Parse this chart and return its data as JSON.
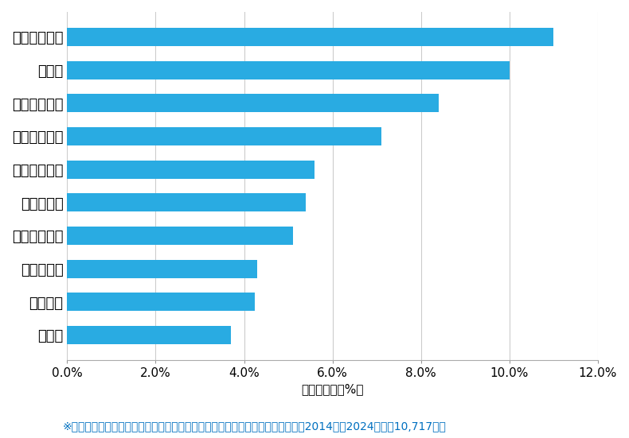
{
  "categories": [
    "城陽市",
    "長岡京市",
    "京都市南区",
    "京都市山科区",
    "京都市北区",
    "京都市左京区",
    "京都市西京区",
    "京都市右京区",
    "宇治市",
    "京都市伏見区"
  ],
  "values": [
    3.7,
    4.25,
    4.3,
    5.1,
    5.4,
    5.6,
    7.1,
    8.4,
    10.0,
    11.0
  ],
  "bar_color": "#29ABE2",
  "xlabel": "件数の割合（%）",
  "xlim": [
    0,
    12.0
  ],
  "xticks": [
    0.0,
    2.0,
    4.0,
    6.0,
    8.0,
    10.0,
    12.0
  ],
  "xtick_labels": [
    "0.0%",
    "2.0%",
    "4.0%",
    "6.0%",
    "8.0%",
    "10.0%",
    "12.0%"
  ],
  "footnote": "※弊社受付の案件を対象に、受付時に市区町村の回答があったものを集計（期間2014年～2024年、計10,717件）",
  "background_color": "#ffffff",
  "grid_color": "#cccccc",
  "bar_height": 0.55,
  "label_fontsize": 13,
  "tick_fontsize": 11,
  "xlabel_fontsize": 11,
  "footnote_fontsize": 10,
  "footnote_color": "#0070C0"
}
